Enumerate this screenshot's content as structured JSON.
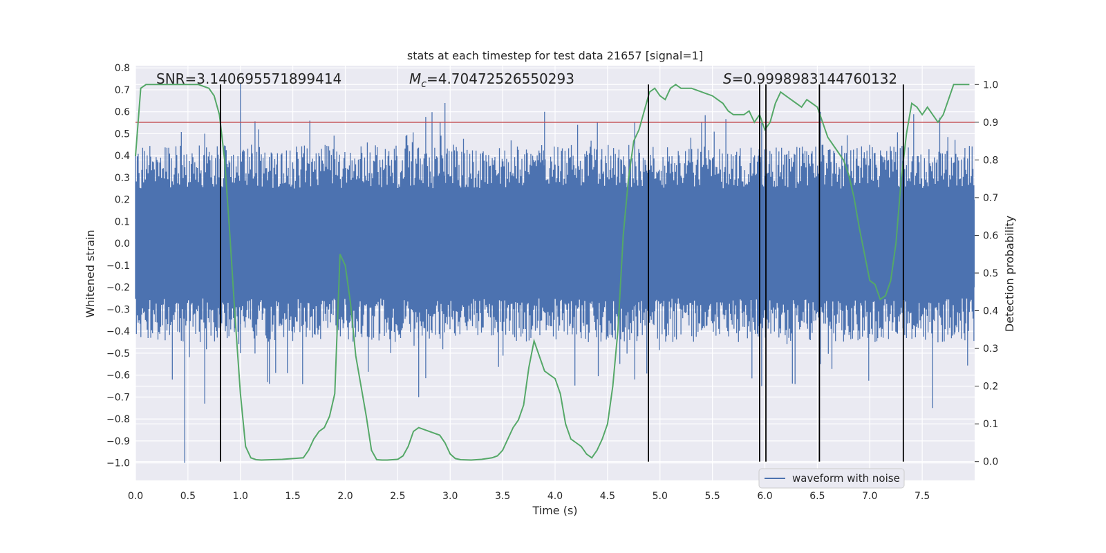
{
  "chart_data": {
    "type": "line",
    "title": "stats at each timestep for test data 21657 [signal=1]",
    "xlabel": "Time (s)",
    "ylabel": "Whitened strain",
    "ylabel_right": "Detection probability",
    "xlim": [
      0.0,
      8.0
    ],
    "ylim": [
      -1.08,
      0.81
    ],
    "ylim_right": [
      -0.05,
      1.05
    ],
    "xticks": [
      "0.0",
      "0.5",
      "1.0",
      "1.5",
      "2.0",
      "2.5",
      "3.0",
      "3.5",
      "4.0",
      "4.5",
      "5.0",
      "5.5",
      "6.0",
      "6.5",
      "7.0",
      "7.5"
    ],
    "yticks": [
      "0.8",
      "0.7",
      "0.6",
      "0.5",
      "0.4",
      "0.3",
      "0.2",
      "0.1",
      "0.0",
      "−0.1",
      "−0.2",
      "−0.3",
      "−0.4",
      "−0.5",
      "−0.6",
      "−0.7",
      "−0.8",
      "−0.9",
      "−1.0"
    ],
    "yticks_right": [
      "1.0",
      "0.9",
      "0.8",
      "0.7",
      "0.6",
      "0.5",
      "0.4",
      "0.3",
      "0.2",
      "0.1",
      "0.0"
    ],
    "annotations": {
      "snr": "SNR=3.140695571899414",
      "mc_symbol": "M",
      "mc_sub": "c",
      "mc_value": "=4.70472526550293",
      "s_symbol": "S",
      "s_value": "=0.9998983144760132"
    },
    "threshold_right": 0.9,
    "detection_markers_s": [
      0.81,
      4.89,
      5.95,
      6.01,
      6.52,
      7.32
    ],
    "series": [
      {
        "name": "waveform with noise",
        "color": "#4c72b0",
        "style": "noise",
        "core_amplitude": 0.2,
        "spike_peak_max": 0.73,
        "spike_peak_min": -1.0
      },
      {
        "name": "detection probability",
        "color": "#55a868",
        "axis": "right",
        "x": [
          0.0,
          0.05,
          0.1,
          0.2,
          0.3,
          0.4,
          0.5,
          0.6,
          0.7,
          0.75,
          0.8,
          0.85,
          0.9,
          0.95,
          1.0,
          1.05,
          1.1,
          1.15,
          1.2,
          1.3,
          1.4,
          1.5,
          1.6,
          1.65,
          1.7,
          1.75,
          1.8,
          1.85,
          1.9,
          1.95,
          2.0,
          2.05,
          2.1,
          2.2,
          2.25,
          2.3,
          2.35,
          2.4,
          2.5,
          2.55,
          2.6,
          2.65,
          2.7,
          2.8,
          2.9,
          2.95,
          3.0,
          3.05,
          3.1,
          3.2,
          3.3,
          3.4,
          3.45,
          3.5,
          3.55,
          3.6,
          3.65,
          3.7,
          3.75,
          3.8,
          3.85,
          3.9,
          3.95,
          4.0,
          4.05,
          4.1,
          4.15,
          4.2,
          4.25,
          4.3,
          4.35,
          4.4,
          4.45,
          4.5,
          4.55,
          4.6,
          4.65,
          4.7,
          4.75,
          4.8,
          4.85,
          4.9,
          4.95,
          5.0,
          5.05,
          5.1,
          5.15,
          5.2,
          5.3,
          5.4,
          5.5,
          5.55,
          5.6,
          5.65,
          5.7,
          5.75,
          5.8,
          5.85,
          5.9,
          5.95,
          6.0,
          6.05,
          6.1,
          6.15,
          6.2,
          6.25,
          6.3,
          6.35,
          6.4,
          6.45,
          6.5,
          6.55,
          6.6,
          6.65,
          6.7,
          6.75,
          6.8,
          6.85,
          6.9,
          6.95,
          7.0,
          7.05,
          7.1,
          7.15,
          7.2,
          7.25,
          7.3,
          7.35,
          7.4,
          7.45,
          7.5,
          7.55,
          7.6,
          7.65,
          7.7,
          7.75,
          7.8,
          7.85,
          7.9,
          7.95
        ],
        "y": [
          0.81,
          0.99,
          1.0,
          1.0,
          1.0,
          1.0,
          1.0,
          1.0,
          0.99,
          0.97,
          0.92,
          0.8,
          0.6,
          0.38,
          0.18,
          0.04,
          0.01,
          0.005,
          0.004,
          0.005,
          0.006,
          0.008,
          0.01,
          0.03,
          0.06,
          0.08,
          0.09,
          0.12,
          0.18,
          0.55,
          0.52,
          0.42,
          0.28,
          0.12,
          0.03,
          0.005,
          0.004,
          0.004,
          0.006,
          0.015,
          0.04,
          0.08,
          0.09,
          0.08,
          0.07,
          0.05,
          0.02,
          0.008,
          0.005,
          0.004,
          0.006,
          0.01,
          0.015,
          0.03,
          0.06,
          0.09,
          0.11,
          0.15,
          0.25,
          0.32,
          0.28,
          0.24,
          0.23,
          0.22,
          0.18,
          0.1,
          0.06,
          0.05,
          0.04,
          0.02,
          0.01,
          0.03,
          0.06,
          0.1,
          0.2,
          0.35,
          0.6,
          0.75,
          0.85,
          0.88,
          0.93,
          0.98,
          0.99,
          0.97,
          0.96,
          0.99,
          1.0,
          0.99,
          0.99,
          0.98,
          0.97,
          0.96,
          0.95,
          0.93,
          0.92,
          0.92,
          0.92,
          0.93,
          0.9,
          0.92,
          0.88,
          0.9,
          0.95,
          0.98,
          0.97,
          0.96,
          0.95,
          0.94,
          0.96,
          0.95,
          0.94,
          0.9,
          0.86,
          0.84,
          0.82,
          0.8,
          0.76,
          0.7,
          0.62,
          0.55,
          0.48,
          0.47,
          0.43,
          0.44,
          0.48,
          0.58,
          0.75,
          0.87,
          0.95,
          0.94,
          0.92,
          0.94,
          0.92,
          0.9,
          0.92,
          0.96,
          1.0,
          1.0,
          1.0,
          1.0
        ]
      }
    ],
    "legend": {
      "label": "waveform with noise",
      "placement": "lower-right"
    }
  }
}
